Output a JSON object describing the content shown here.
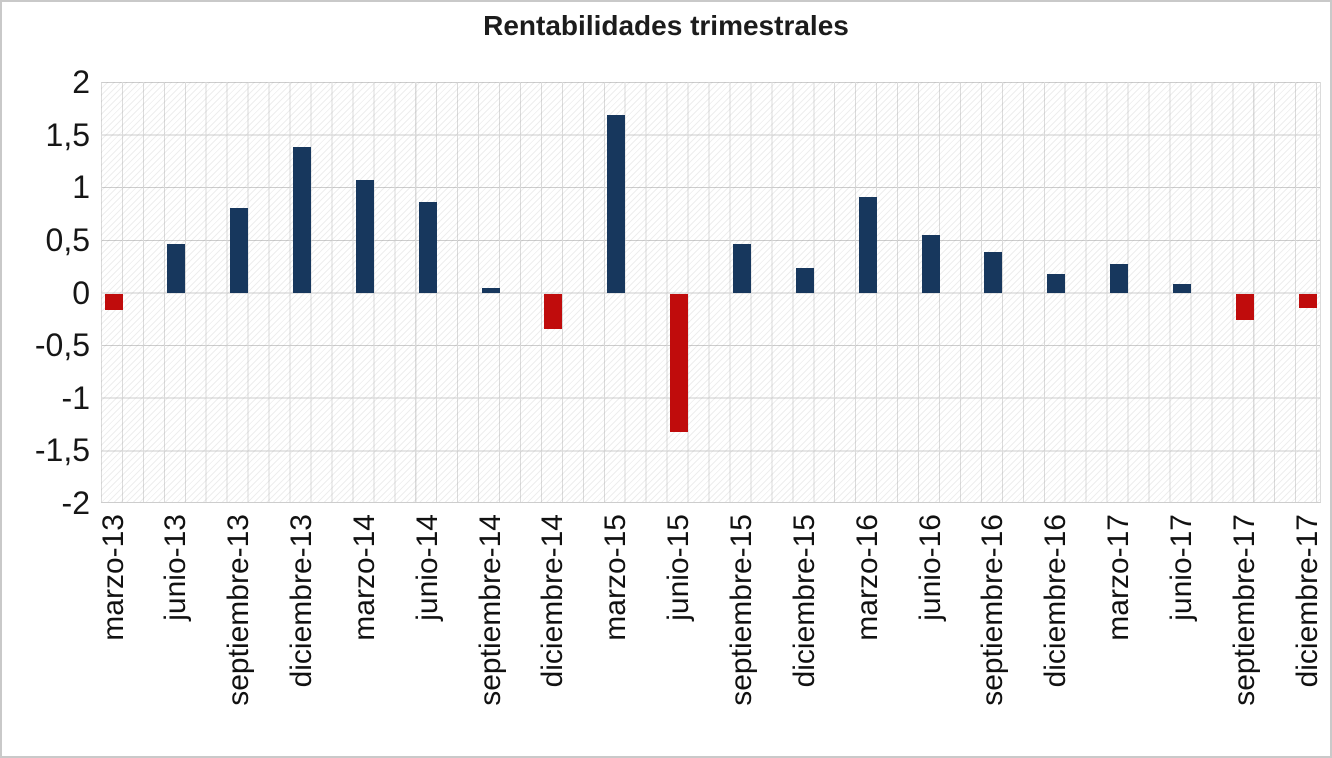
{
  "chart_data": {
    "type": "bar",
    "title": "Rentabilidades trimestrales",
    "categories": [
      "marzo-13",
      "junio-13",
      "septiembre-13",
      "diciembre-13",
      "marzo-14",
      "junio-14",
      "septiembre-14",
      "diciembre-14",
      "marzo-15",
      "junio-15",
      "septiembre-15",
      "diciembre-15",
      "marzo-16",
      "junio-16",
      "septiembre-16",
      "diciembre-16",
      "marzo-17",
      "junio-17",
      "septiembre-17",
      "diciembre-17"
    ],
    "values": [
      -0.15,
      0.47,
      0.81,
      1.39,
      1.07,
      0.86,
      0.05,
      -0.33,
      1.69,
      -1.31,
      0.47,
      0.24,
      0.91,
      0.55,
      0.39,
      0.18,
      0.28,
      0.09,
      -0.25,
      -0.13
    ],
    "xlabel": "",
    "ylabel": "",
    "ylim": [
      -2,
      2
    ],
    "ytick_step": 0.5,
    "ytick_labels": [
      "2",
      "1,5",
      "1",
      "0,5",
      "0",
      "-0,5",
      "-1",
      "-1,5",
      "-2"
    ],
    "legend": "none",
    "grid": "horizontal and vertical minor gridlines, hatched plot background",
    "colors": {
      "positive": "#17375D",
      "negative": "#C00C0C"
    }
  }
}
